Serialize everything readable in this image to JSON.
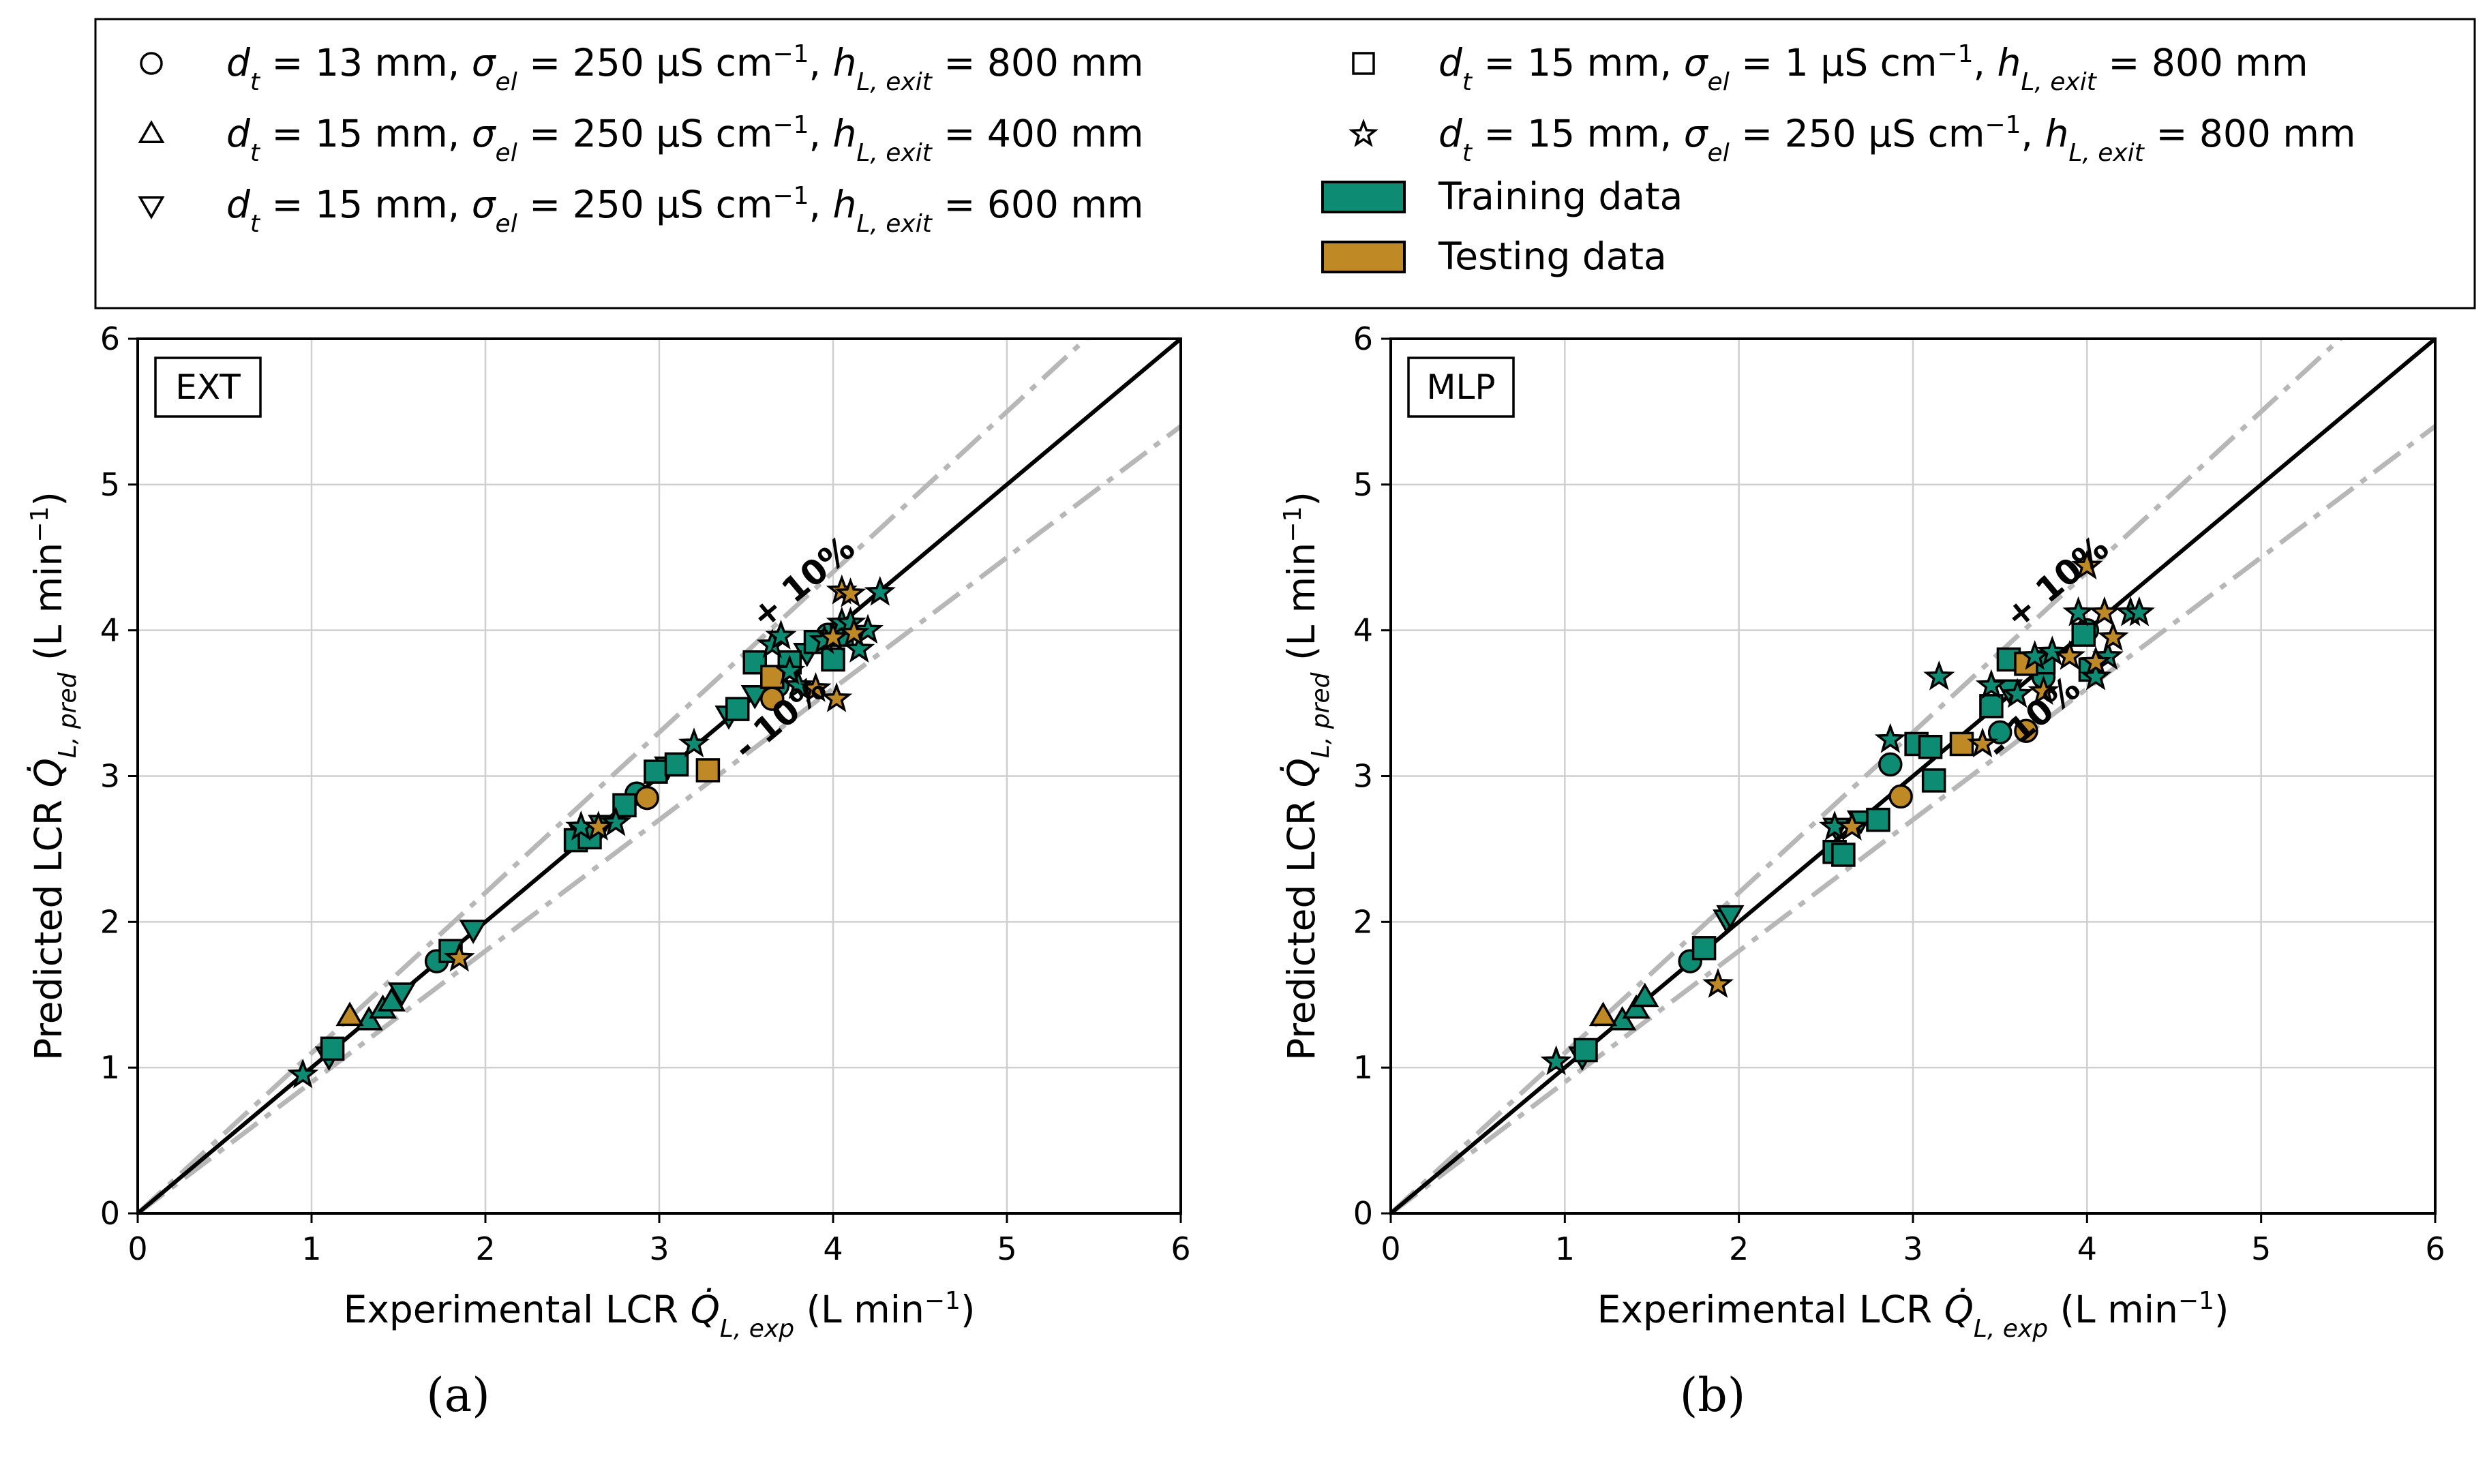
{
  "legend": {
    "entries": [
      {
        "marker": "circle",
        "text_html": "<tspan font-style='italic'>d</tspan><tspan baseline-shift='sub' font-size='36' font-style='italic'>t</tspan> = 13 mm, <tspan font-style='italic'>σ</tspan><tspan baseline-shift='sub' font-size='36' font-style='italic'>el</tspan> = 250 μS cm<tspan baseline-shift='super' font-size='36'>−1</tspan>, <tspan font-style='italic'>h</tspan><tspan baseline-shift='sub' font-size='36' font-style='italic'>L, exit</tspan> = 800 mm"
      },
      {
        "marker": "triangle-up",
        "text_html": "<tspan font-style='italic'>d</tspan><tspan baseline-shift='sub' font-size='36' font-style='italic'>t</tspan> = 15 mm, <tspan font-style='italic'>σ</tspan><tspan baseline-shift='sub' font-size='36' font-style='italic'>el</tspan> = 250 μS cm<tspan baseline-shift='super' font-size='36'>−1</tspan>, <tspan font-style='italic'>h</tspan><tspan baseline-shift='sub' font-size='36' font-style='italic'>L, exit</tspan> = 400 mm"
      },
      {
        "marker": "triangle-down",
        "text_html": "<tspan font-style='italic'>d</tspan><tspan baseline-shift='sub' font-size='36' font-style='italic'>t</tspan> = 15 mm, <tspan font-style='italic'>σ</tspan><tspan baseline-shift='sub' font-size='36' font-style='italic'>el</tspan> = 250 μS cm<tspan baseline-shift='super' font-size='36'>−1</tspan>, <tspan font-style='italic'>h</tspan><tspan baseline-shift='sub' font-size='36' font-style='italic'>L, exit</tspan> = 600 mm"
      },
      {
        "marker": "square",
        "text_html": "<tspan font-style='italic'>d</tspan><tspan baseline-shift='sub' font-size='36' font-style='italic'>t</tspan> = 15 mm, <tspan font-style='italic'>σ</tspan><tspan baseline-shift='sub' font-size='36' font-style='italic'>el</tspan> = 1 μS cm<tspan baseline-shift='super' font-size='36'>−1</tspan>, <tspan font-style='italic'>h</tspan><tspan baseline-shift='sub' font-size='36' font-style='italic'>L, exit</tspan> = 800 mm"
      },
      {
        "marker": "star",
        "text_html": "<tspan font-style='italic'>d</tspan><tspan baseline-shift='sub' font-size='36' font-style='italic'>t</tspan> = 15 mm, <tspan font-style='italic'>σ</tspan><tspan baseline-shift='sub' font-size='36' font-style='italic'>el</tspan> = 250 μS cm<tspan baseline-shift='super' font-size='36'>−1</tspan>, <tspan font-style='italic'>h</tspan><tspan baseline-shift='sub' font-size='36' font-style='italic'>L, exit</tspan> = 800 mm"
      },
      {
        "marker": "patch-train",
        "text_html": "Training data"
      },
      {
        "marker": "patch-test",
        "text_html": "Testing data"
      }
    ]
  },
  "colors": {
    "training": "#0e8c73",
    "testing": "#bf8a25",
    "ideal_line": "#000000",
    "band_line": "#b7b7b7",
    "grid": "#cfcfcf"
  },
  "chart_data": [
    {
      "type": "scatter",
      "panel_label": "(a)",
      "model_label": "EXT",
      "xlabel_html": "Experimental LCR <tspan font-style='italic'>Q̇</tspan><tspan baseline-shift='sub' font-size='36' font-style='italic'>L, exp</tspan> (L min<tspan baseline-shift='super' font-size='36'>−1</tspan>)",
      "ylabel_html": "Predicted LCR <tspan font-style='italic'>Q̇</tspan><tspan baseline-shift='sub' font-size='36' font-style='italic'>L, pred</tspan> (L min<tspan baseline-shift='super' font-size='36'>−1</tspan>)",
      "xlim": [
        0,
        6
      ],
      "ylim": [
        0,
        6
      ],
      "xticks": [
        "0",
        "1",
        "2",
        "3",
        "4",
        "5",
        "6"
      ],
      "yticks": [
        "0",
        "1",
        "2",
        "3",
        "4",
        "5",
        "6"
      ],
      "grid": true,
      "ideal_line": [
        [
          0,
          0
        ],
        [
          6,
          6
        ]
      ],
      "band_factors": [
        1.1,
        0.9
      ],
      "band_labels": [
        "+ 10%",
        "- 10%"
      ],
      "band_label_pos": [
        [
          3.6,
          4.0
        ],
        [
          3.5,
          3.1
        ]
      ],
      "series": [
        {
          "marker": "circle",
          "set": "training",
          "points": [
            [
              1.72,
              1.73
            ],
            [
              2.87,
              2.88
            ],
            [
              3.68,
              3.62
            ],
            [
              3.97,
              3.97
            ]
          ]
        },
        {
          "marker": "circle",
          "set": "testing",
          "points": [
            [
              2.93,
              2.85
            ],
            [
              3.65,
              3.53
            ]
          ]
        },
        {
          "marker": "triangle-up",
          "set": "training",
          "points": [
            [
              1.33,
              1.32
            ],
            [
              1.41,
              1.4
            ],
            [
              1.46,
              1.45
            ]
          ]
        },
        {
          "marker": "triangle-up",
          "set": "testing",
          "points": [
            [
              1.22,
              1.35
            ]
          ]
        },
        {
          "marker": "triangle-down",
          "set": "training",
          "points": [
            [
              1.1,
              1.08
            ],
            [
              1.52,
              1.52
            ],
            [
              1.93,
              1.95
            ],
            [
              2.56,
              2.6
            ],
            [
              2.67,
              2.67
            ],
            [
              3.05,
              3.07
            ],
            [
              3.4,
              3.42
            ],
            [
              3.55,
              3.56
            ],
            [
              3.85,
              3.85
            ]
          ]
        },
        {
          "marker": "square",
          "set": "training",
          "points": [
            [
              1.12,
              1.13
            ],
            [
              1.8,
              1.8
            ],
            [
              2.52,
              2.56
            ],
            [
              2.6,
              2.58
            ],
            [
              2.8,
              2.8
            ],
            [
              2.98,
              3.03
            ],
            [
              3.1,
              3.08
            ],
            [
              3.45,
              3.46
            ],
            [
              3.55,
              3.78
            ],
            [
              3.75,
              3.78
            ],
            [
              3.9,
              3.92
            ],
            [
              4.0,
              3.8
            ],
            [
              4.05,
              3.97
            ]
          ]
        },
        {
          "marker": "square",
          "set": "testing",
          "points": [
            [
              3.28,
              3.04
            ],
            [
              3.65,
              3.68
            ]
          ]
        },
        {
          "marker": "star",
          "set": "training",
          "points": [
            [
              0.95,
              0.95
            ],
            [
              2.55,
              2.65
            ],
            [
              2.75,
              2.68
            ],
            [
              3.2,
              3.22
            ],
            [
              3.65,
              3.9
            ],
            [
              3.7,
              3.96
            ],
            [
              3.8,
              3.62
            ],
            [
              3.75,
              3.72
            ],
            [
              3.95,
              3.93
            ],
            [
              4.05,
              4.05
            ],
            [
              4.1,
              4.05
            ],
            [
              4.15,
              3.87
            ],
            [
              4.2,
              4.0
            ],
            [
              4.27,
              4.26
            ]
          ]
        },
        {
          "marker": "star",
          "set": "testing",
          "points": [
            [
              1.85,
              1.75
            ],
            [
              2.65,
              2.65
            ],
            [
              3.9,
              3.6
            ],
            [
              4.02,
              3.53
            ],
            [
              4.05,
              4.27
            ],
            [
              4.1,
              4.25
            ],
            [
              4.0,
              3.95
            ],
            [
              4.12,
              3.98
            ]
          ]
        }
      ]
    },
    {
      "type": "scatter",
      "panel_label": "(b)",
      "model_label": "MLP",
      "xlabel_html": "Experimental LCR <tspan font-style='italic'>Q̇</tspan><tspan baseline-shift='sub' font-size='36' font-style='italic'>L, exp</tspan> (L min<tspan baseline-shift='super' font-size='36'>−1</tspan>)",
      "ylabel_html": "Predicted LCR <tspan font-style='italic'>Q̇</tspan><tspan baseline-shift='sub' font-size='36' font-style='italic'>L, pred</tspan> (L min<tspan baseline-shift='super' font-size='36'>−1</tspan>)",
      "xlim": [
        0,
        6
      ],
      "ylim": [
        0,
        6
      ],
      "xticks": [
        "0",
        "1",
        "2",
        "3",
        "4",
        "5",
        "6"
      ],
      "yticks": [
        "0",
        "1",
        "2",
        "3",
        "4",
        "5",
        "6"
      ],
      "grid": true,
      "ideal_line": [
        [
          0,
          0
        ],
        [
          6,
          6
        ]
      ],
      "band_factors": [
        1.1,
        0.9
      ],
      "band_labels": [
        "+ 10%",
        "- 10%"
      ],
      "band_label_pos": [
        [
          3.6,
          4.0
        ],
        [
          3.5,
          3.1
        ]
      ],
      "series": [
        {
          "marker": "circle",
          "set": "training",
          "points": [
            [
              1.72,
              1.73
            ],
            [
              2.87,
              3.08
            ],
            [
              3.5,
              3.3
            ],
            [
              3.75,
              3.68
            ],
            [
              4.0,
              4.0
            ]
          ]
        },
        {
          "marker": "circle",
          "set": "testing",
          "points": [
            [
              2.93,
              2.86
            ],
            [
              3.65,
              3.31
            ]
          ]
        },
        {
          "marker": "triangle-up",
          "set": "training",
          "points": [
            [
              1.33,
              1.32
            ],
            [
              1.41,
              1.4
            ],
            [
              1.46,
              1.48
            ]
          ]
        },
        {
          "marker": "triangle-up",
          "set": "testing",
          "points": [
            [
              1.22,
              1.35
            ]
          ]
        },
        {
          "marker": "triangle-down",
          "set": "training",
          "points": [
            [
              1.1,
              1.08
            ],
            [
              1.93,
              2.02
            ],
            [
              1.95,
              2.05
            ],
            [
              2.56,
              2.65
            ],
            [
              2.7,
              2.7
            ],
            [
              3.55,
              3.6
            ]
          ]
        },
        {
          "marker": "square",
          "set": "training",
          "points": [
            [
              1.12,
              1.12
            ],
            [
              1.8,
              1.82
            ],
            [
              2.55,
              2.48
            ],
            [
              2.6,
              2.46
            ],
            [
              2.8,
              2.7
            ],
            [
              3.02,
              3.22
            ],
            [
              3.1,
              3.2
            ],
            [
              3.12,
              2.97
            ],
            [
              3.45,
              3.48
            ],
            [
              3.55,
              3.8
            ],
            [
              3.75,
              3.78
            ],
            [
              3.98,
              3.97
            ],
            [
              4.02,
              3.73
            ]
          ]
        },
        {
          "marker": "square",
          "set": "testing",
          "points": [
            [
              3.28,
              3.22
            ],
            [
              3.65,
              3.77
            ]
          ]
        },
        {
          "marker": "star",
          "set": "training",
          "points": [
            [
              0.95,
              1.04
            ],
            [
              2.55,
              2.65
            ],
            [
              2.87,
              3.25
            ],
            [
              3.15,
              3.68
            ],
            [
              3.45,
              3.62
            ],
            [
              3.6,
              3.56
            ],
            [
              3.7,
              3.82
            ],
            [
              3.8,
              3.85
            ],
            [
              3.95,
              4.12
            ],
            [
              4.05,
              3.68
            ],
            [
              4.12,
              3.82
            ],
            [
              4.25,
              4.12
            ],
            [
              4.3,
              4.12
            ]
          ]
        },
        {
          "marker": "star",
          "set": "testing",
          "points": [
            [
              1.88,
              1.57
            ],
            [
              2.65,
              2.65
            ],
            [
              3.4,
              3.22
            ],
            [
              3.75,
              3.58
            ],
            [
              3.9,
              3.82
            ],
            [
              4.0,
              4.44
            ],
            [
              4.1,
              4.12
            ],
            [
              4.15,
              3.95
            ],
            [
              4.05,
              3.78
            ]
          ]
        }
      ]
    }
  ]
}
